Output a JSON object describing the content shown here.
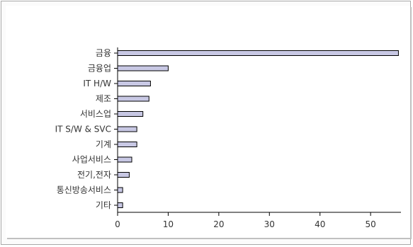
{
  "chart_data": {
    "type": "bar",
    "orientation": "horizontal",
    "categories": [
      "금융",
      "금융업",
      "IT H/W",
      "제조",
      "서비스업",
      "IT S/W & SVC",
      "기계",
      "사업서비스",
      "전기,전자",
      "통신방송서비스",
      "기타"
    ],
    "values": [
      55.5,
      10,
      6.5,
      6.2,
      5,
      3.8,
      3.8,
      2.8,
      2.3,
      1,
      1
    ],
    "title": "",
    "xlabel": "",
    "ylabel": "",
    "xlim": [
      0,
      56
    ],
    "xticks": [
      "0",
      "10",
      "20",
      "30",
      "40",
      "50"
    ],
    "grid": false,
    "legend": "none",
    "bar_color": "#c8c8e4",
    "bar_edge_color": "#000000"
  }
}
